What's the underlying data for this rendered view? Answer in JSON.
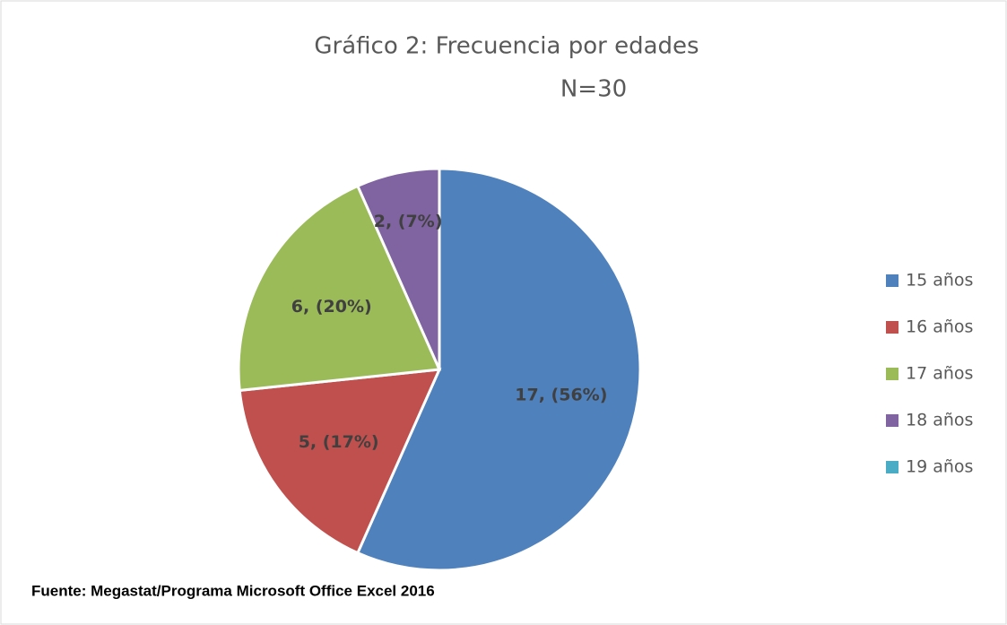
{
  "chart_data": {
    "type": "pie",
    "title": "Gráfico 2: Frecuencia por edades",
    "subtitle": "N=30",
    "categories": [
      "15 años",
      "16 años",
      "17 años",
      "18 años",
      "19 años"
    ],
    "values": [
      17,
      5,
      6,
      2,
      0
    ],
    "value_labels": [
      "17, (56%)",
      "5, (17%)",
      "6, (20%)",
      "2, (7%)",
      null
    ],
    "colors": [
      "#4f81bd",
      "#c0504d",
      "#9bbb59",
      "#8064a2",
      "#4bacc6"
    ],
    "legend": "right",
    "note": "Fuente: Megastat/Programa Microsoft Office Excel 2016"
  }
}
